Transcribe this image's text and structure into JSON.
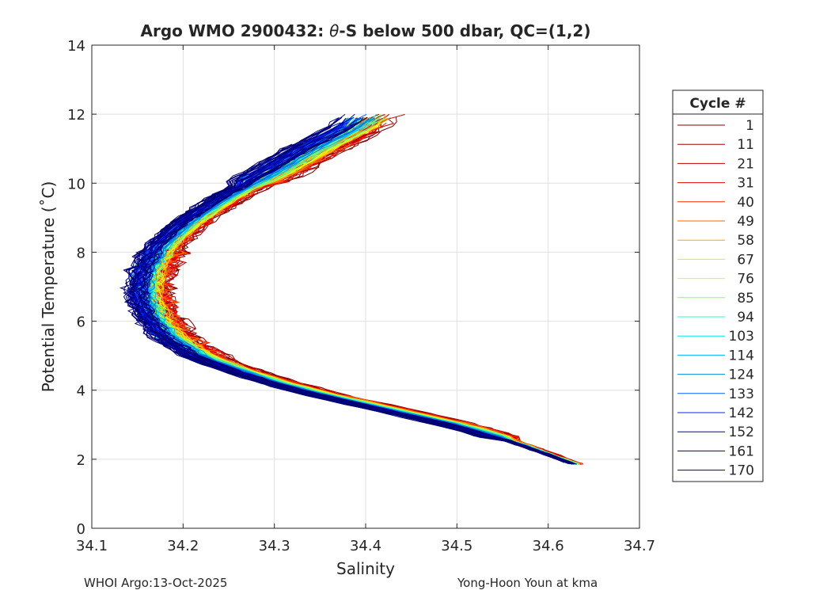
{
  "chart_data": {
    "type": "line",
    "title_prefix": "Argo WMO 2900432: ",
    "title_theta": "θ",
    "title_suffix": "-S below 500 dbar,  QC=(1,2)",
    "xlabel": "Salinity",
    "ylabel": "Potential Temperature (˚C)",
    "xlim": [
      34.1,
      34.7
    ],
    "ylim": [
      0,
      14
    ],
    "xticks": [
      34.1,
      34.2,
      34.3,
      34.4,
      34.5,
      34.6,
      34.7
    ],
    "xtick_labels": [
      "34.1",
      "34.2",
      "34.3",
      "34.4",
      "34.5",
      "34.6",
      "34.7"
    ],
    "yticks": [
      0,
      2,
      4,
      6,
      8,
      10,
      12,
      14
    ],
    "ytick_labels": [
      "0",
      "2",
      "4",
      "6",
      "8",
      "10",
      "12",
      "14"
    ],
    "grid": true,
    "legend_title": "Cycle #",
    "legend_position": "right",
    "series": [
      {
        "name": "1",
        "color": "#800000"
      },
      {
        "name": "11",
        "color": "#a00000"
      },
      {
        "name": "21",
        "color": "#c40000"
      },
      {
        "name": "31",
        "color": "#e80000"
      },
      {
        "name": "40",
        "color": "#ff2800"
      },
      {
        "name": "49",
        "color": "#ff6400"
      },
      {
        "name": "58",
        "color": "#ffa000"
      },
      {
        "name": "67",
        "color": "#ffe000"
      },
      {
        "name": "76",
        "color": "#c8ff2c"
      },
      {
        "name": "85",
        "color": "#80ff70"
      },
      {
        "name": "94",
        "color": "#30ffb0"
      },
      {
        "name": "103",
        "color": "#00e8e8"
      },
      {
        "name": "114",
        "color": "#00b0ff"
      },
      {
        "name": "124",
        "color": "#0088d8"
      },
      {
        "name": "133",
        "color": "#0060ff"
      },
      {
        "name": "142",
        "color": "#0028f0"
      },
      {
        "name": "152",
        "color": "#0000c0"
      },
      {
        "name": "161",
        "color": "#00008c"
      },
      {
        "name": "170",
        "color": "#000070"
      }
    ],
    "base_profile": [
      {
        "s": 34.631,
        "t": 1.85
      },
      {
        "s": 34.61,
        "t": 2.05
      },
      {
        "s": 34.58,
        "t": 2.35
      },
      {
        "s": 34.54,
        "t": 2.7
      },
      {
        "s": 34.5,
        "t": 3.0
      },
      {
        "s": 34.45,
        "t": 3.3
      },
      {
        "s": 34.4,
        "t": 3.6
      },
      {
        "s": 34.35,
        "t": 3.9
      },
      {
        "s": 34.3,
        "t": 4.25
      },
      {
        "s": 34.26,
        "t": 4.6
      },
      {
        "s": 34.22,
        "t": 5.0
      },
      {
        "s": 34.19,
        "t": 5.5
      },
      {
        "s": 34.17,
        "t": 6.1
      },
      {
        "s": 34.16,
        "t": 6.8
      },
      {
        "s": 34.165,
        "t": 7.5
      },
      {
        "s": 34.18,
        "t": 8.2
      },
      {
        "s": 34.21,
        "t": 8.9
      },
      {
        "s": 34.25,
        "t": 9.6
      },
      {
        "s": 34.3,
        "t": 10.3
      },
      {
        "s": 34.345,
        "t": 11.0
      },
      {
        "s": 34.39,
        "t": 11.6
      },
      {
        "s": 34.41,
        "t": 12.0
      }
    ]
  },
  "footer": {
    "left": "WHOI Argo:13-Oct-2025",
    "right": "Yong-Hoon Youn at kma"
  }
}
